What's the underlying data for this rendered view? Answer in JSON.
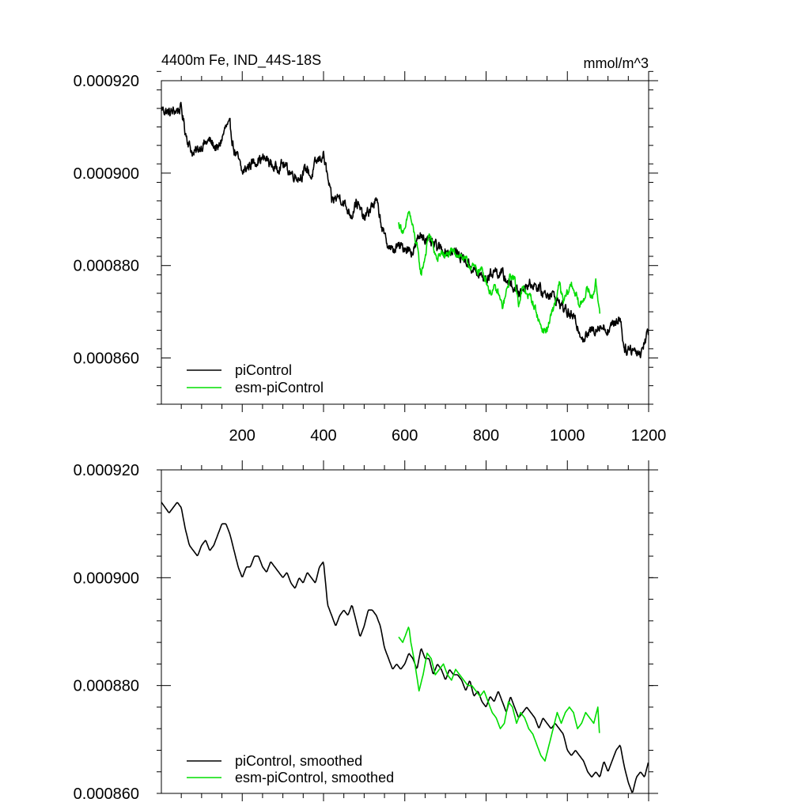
{
  "figure": {
    "title_left": "4400m Fe, IND_44S-18S",
    "title_right": "mmol/m^3"
  },
  "colors": {
    "picontrol": "#000000",
    "esm_picontrol": "#00dd00",
    "axis": "#000000"
  },
  "chart_data": [
    {
      "type": "line",
      "panel": "top",
      "title": "4400m Fe, IND_44S-18S",
      "units": "mmol/m^3",
      "xlabel": "",
      "ylabel": "",
      "xlim": [
        1,
        1200
      ],
      "ylim": [
        0.00085,
        0.00092
      ],
      "xticks": [
        200,
        400,
        600,
        800,
        1000,
        1200
      ],
      "xtick_labels": [
        "200",
        "400",
        "600",
        "800",
        "1000",
        "1200"
      ],
      "yticks": [
        0.00086,
        0.00088,
        0.0009,
        0.00092
      ],
      "ytick_labels": [
        "0.000860",
        "0.000880",
        "0.000900",
        "0.000920"
      ],
      "legend_position": "bottom-left",
      "series": [
        {
          "name": "piControl",
          "color": "#000000",
          "noise": 1.2e-06,
          "x": [
            1,
            20,
            50,
            60,
            70,
            80,
            100,
            120,
            140,
            160,
            170,
            180,
            190,
            200,
            220,
            240,
            260,
            280,
            300,
            320,
            340,
            360,
            370,
            380,
            390,
            400,
            420,
            440,
            460,
            470,
            480,
            490,
            500,
            520,
            530,
            550,
            570,
            580,
            600,
            620,
            640,
            660,
            680,
            700,
            720,
            740,
            760,
            780,
            800,
            820,
            840,
            860,
            880,
            900,
            920,
            940,
            960,
            980,
            1000,
            1020,
            1040,
            1060,
            1080,
            1100,
            1120,
            1130,
            1140,
            1150,
            1160,
            1180,
            1200
          ],
          "values": [
            0.000914,
            0.000913,
            0.000914,
            0.000909,
            0.000906,
            0.000904,
            0.000906,
            0.000907,
            0.000905,
            0.00091,
            0.00091,
            0.000905,
            0.000903,
            0.0009,
            0.000902,
            0.000903,
            0.000903,
            0.000901,
            0.000902,
            0.0009,
            0.000899,
            0.000901,
            0.000899,
            0.000902,
            0.000903,
            0.000904,
            0.000894,
            0.000895,
            0.000892,
            0.000891,
            0.000894,
            0.000892,
            0.00089,
            0.000893,
            0.000894,
            0.000886,
            0.000883,
            0.000884,
            0.000884,
            0.000883,
            0.000887,
            0.000885,
            0.000884,
            0.000883,
            0.000883,
            0.000882,
            0.00088,
            0.000878,
            0.000877,
            0.000879,
            0.000878,
            0.000876,
            0.000874,
            0.000876,
            0.000876,
            0.000874,
            0.000874,
            0.000872,
            0.00087,
            0.000868,
            0.000864,
            0.000866,
            0.000867,
            0.000866,
            0.000868,
            0.000869,
            0.000862,
            0.000862,
            0.000862,
            0.000861,
            0.000866
          ]
        },
        {
          "name": "esm-piControl",
          "color": "#00dd00",
          "noise": 9e-07,
          "x": [
            585,
            600,
            610,
            620,
            630,
            640,
            650,
            660,
            670,
            680,
            690,
            700,
            720,
            740,
            760,
            780,
            790,
            800,
            810,
            820,
            830,
            840,
            850,
            860,
            870,
            880,
            890,
            900,
            910,
            920,
            930,
            940,
            950,
            960,
            970,
            980,
            990,
            1000,
            1010,
            1020,
            1030,
            1040,
            1050,
            1060,
            1070,
            1080
          ],
          "values": [
            0.000889,
            0.000887,
            0.000892,
            0.000888,
            0.000884,
            0.000878,
            0.000882,
            0.000887,
            0.000884,
            0.000881,
            0.000883,
            0.000882,
            0.000883,
            0.000882,
            0.00088,
            0.000879,
            0.000879,
            0.000877,
            0.000874,
            0.000875,
            0.000874,
            0.000871,
            0.000874,
            0.000878,
            0.000877,
            0.000872,
            0.000875,
            0.000874,
            0.000873,
            0.000871,
            0.000868,
            0.000866,
            0.000866,
            0.000869,
            0.000872,
            0.000876,
            0.000872,
            0.000874,
            0.000876,
            0.000874,
            0.000871,
            0.000873,
            0.000875,
            0.000873,
            0.000876,
            0.00087
          ]
        }
      ]
    },
    {
      "type": "line",
      "panel": "bottom",
      "xlabel": "",
      "ylabel": "",
      "xlim": [
        1,
        1200
      ],
      "ylim": [
        0.00086,
        0.00092
      ],
      "yticks": [
        0.00086,
        0.00088,
        0.0009,
        0.00092
      ],
      "ytick_labels": [
        "0.000860",
        "0.000880",
        "0.000900",
        "0.000920"
      ],
      "legend_position": "bottom-left",
      "series": [
        {
          "name": "piControl, smoothed",
          "color": "#000000",
          "noise": 0,
          "x": [
            1,
            20,
            30,
            40,
            50,
            60,
            70,
            80,
            90,
            100,
            110,
            120,
            130,
            140,
            150,
            160,
            170,
            180,
            190,
            200,
            210,
            220,
            230,
            240,
            250,
            260,
            270,
            280,
            290,
            300,
            310,
            320,
            330,
            340,
            350,
            360,
            370,
            380,
            390,
            400,
            410,
            420,
            430,
            440,
            450,
            460,
            470,
            480,
            490,
            500,
            510,
            520,
            530,
            540,
            550,
            560,
            570,
            580,
            590,
            600,
            610,
            620,
            630,
            640,
            650,
            660,
            670,
            680,
            690,
            700,
            710,
            720,
            730,
            740,
            750,
            760,
            770,
            780,
            790,
            800,
            810,
            820,
            830,
            840,
            850,
            860,
            870,
            880,
            890,
            900,
            910,
            920,
            930,
            940,
            950,
            960,
            970,
            980,
            990,
            1000,
            1010,
            1020,
            1030,
            1040,
            1050,
            1060,
            1070,
            1080,
            1090,
            1100,
            1110,
            1120,
            1130,
            1140,
            1150,
            1160,
            1170,
            1180,
            1190,
            1200
          ],
          "values": [
            0.000914,
            0.000912,
            0.000913,
            0.000914,
            0.000913,
            0.000909,
            0.000906,
            0.000905,
            0.000904,
            0.000906,
            0.000907,
            0.000905,
            0.000906,
            0.000908,
            0.00091,
            0.00091,
            0.000908,
            0.000905,
            0.000902,
            0.0009,
            0.000902,
            0.000902,
            0.000904,
            0.000904,
            0.000902,
            0.000901,
            0.000903,
            0.000902,
            0.000901,
            0.0009,
            0.000901,
            0.000899,
            0.000898,
            0.0009,
            0.000899,
            0.000901,
            0.0009,
            0.000899,
            0.000902,
            0.000903,
            0.000895,
            0.000893,
            0.000891,
            0.000893,
            0.000894,
            0.000893,
            0.000895,
            0.000892,
            0.000889,
            0.000891,
            0.000894,
            0.000894,
            0.000893,
            0.000891,
            0.000887,
            0.000885,
            0.000883,
            0.000884,
            0.000883,
            0.000884,
            0.000886,
            0.000885,
            0.000883,
            0.000887,
            0.000885,
            0.000885,
            0.000882,
            0.000884,
            0.000883,
            0.000881,
            0.000883,
            0.000882,
            0.000882,
            0.000881,
            0.000879,
            0.000881,
            0.000878,
            0.000879,
            0.000877,
            0.000876,
            0.000878,
            0.000877,
            0.000879,
            0.000877,
            0.000875,
            0.000878,
            0.000876,
            0.000874,
            0.000875,
            0.000876,
            0.000875,
            0.000874,
            0.000872,
            0.000874,
            0.000873,
            0.000872,
            0.000873,
            0.000872,
            0.000871,
            0.000868,
            0.000867,
            0.000868,
            0.000867,
            0.000866,
            0.000864,
            0.000863,
            0.000864,
            0.000863,
            0.000866,
            0.000864,
            0.000866,
            0.000868,
            0.000869,
            0.000865,
            0.000862,
            0.00086,
            0.000863,
            0.000864,
            0.000863,
            0.000866
          ]
        },
        {
          "name": "esm-piControl, smoothed",
          "color": "#00dd00",
          "noise": 0,
          "x": [
            585,
            595,
            605,
            610,
            615,
            625,
            635,
            645,
            655,
            665,
            675,
            685,
            695,
            705,
            715,
            725,
            735,
            745,
            755,
            765,
            775,
            785,
            795,
            805,
            815,
            825,
            835,
            845,
            855,
            865,
            875,
            885,
            895,
            905,
            915,
            925,
            935,
            945,
            955,
            965,
            975,
            985,
            995,
            1005,
            1015,
            1025,
            1035,
            1045,
            1055,
            1065,
            1075,
            1080
          ],
          "values": [
            0.000889,
            0.000888,
            0.00089,
            0.000891,
            0.000888,
            0.000884,
            0.000879,
            0.000882,
            0.000886,
            0.000885,
            0.000882,
            0.000883,
            0.000884,
            0.000882,
            0.000881,
            0.000883,
            0.000882,
            0.000881,
            0.00088,
            0.00088,
            0.000879,
            0.000878,
            0.000879,
            0.000877,
            0.000875,
            0.000874,
            0.000872,
            0.000873,
            0.000877,
            0.000876,
            0.000873,
            0.000875,
            0.000874,
            0.000872,
            0.000871,
            0.000869,
            0.000867,
            0.000866,
            0.000869,
            0.000872,
            0.000875,
            0.000873,
            0.000875,
            0.000876,
            0.000875,
            0.000872,
            0.000873,
            0.000875,
            0.000874,
            0.000873,
            0.000876,
            0.00087
          ]
        }
      ]
    }
  ]
}
